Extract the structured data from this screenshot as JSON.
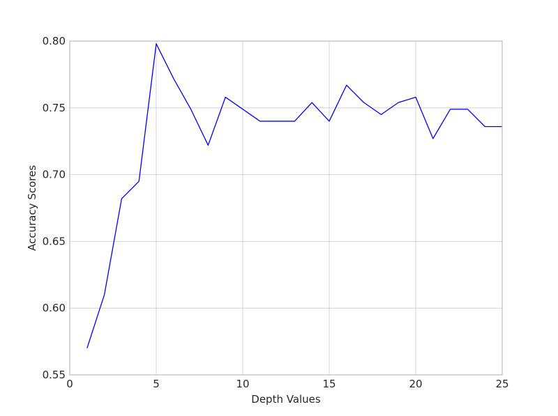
{
  "chart_data": {
    "type": "line",
    "title": "",
    "xlabel": "Depth Values",
    "ylabel": "Accuracy Scores",
    "xlim": [
      0,
      25
    ],
    "ylim": [
      0.55,
      0.8
    ],
    "xticks": [
      0,
      5,
      10,
      15,
      20,
      25
    ],
    "xtick_labels": [
      "0",
      "5",
      "10",
      "15",
      "20",
      "25"
    ],
    "yticks": [
      0.55,
      0.6,
      0.65,
      0.7,
      0.75,
      0.8
    ],
    "ytick_labels": [
      "0.55",
      "0.60",
      "0.65",
      "0.70",
      "0.75",
      "0.80"
    ],
    "grid": true,
    "series": [
      {
        "color": "#0000ff",
        "x": [
          1,
          2,
          3,
          4,
          5,
          6,
          7,
          8,
          9,
          10,
          11,
          12,
          13,
          14,
          15,
          16,
          17,
          18,
          19,
          20,
          21,
          22,
          23,
          24,
          25
        ],
        "y": [
          0.57,
          0.61,
          0.682,
          0.695,
          0.798,
          0.772,
          0.749,
          0.722,
          0.758,
          0.749,
          0.74,
          0.74,
          0.74,
          0.754,
          0.74,
          0.767,
          0.754,
          0.745,
          0.754,
          0.758,
          0.727,
          0.749,
          0.749,
          0.736,
          0.736
        ]
      }
    ]
  }
}
